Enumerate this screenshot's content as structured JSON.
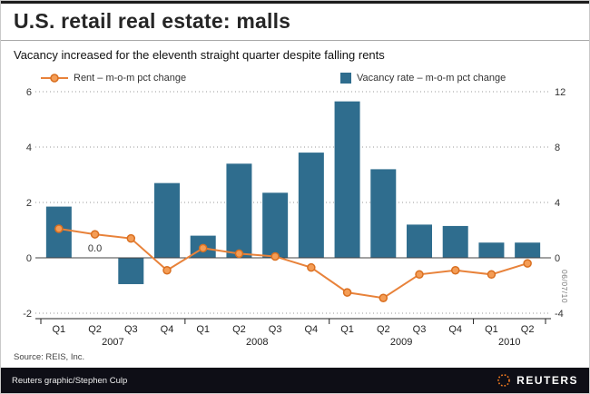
{
  "header": {
    "title": "U.S. retail real estate: malls",
    "subtitle": "Vacancy increased for the eleventh straight quarter despite falling rents"
  },
  "legend": {
    "rent_label": "Rent – m-o-m pct change",
    "vacancy_label": "Vacancy rate – m-o-m pct change"
  },
  "side_date": "06/07/10",
  "footer": {
    "source": "Source: REIS, Inc.",
    "credit": "Reuters graphic/Stephen Culp",
    "logo_text": "REUTERS"
  },
  "colors": {
    "bar": "#2f6d8e",
    "line": "#e8823a",
    "marker_fill": "#f49d56",
    "marker_stroke": "#d96f20",
    "logo_orange": "#f47b20",
    "grid": "#999999",
    "zero_line": "#444444",
    "axis": "#222222"
  },
  "chart_data": {
    "type": "bar",
    "subtype": "bar+line combo, dual axis",
    "categories": [
      "Q1",
      "Q2",
      "Q3",
      "Q4",
      "Q1",
      "Q2",
      "Q3",
      "Q4",
      "Q1",
      "Q2",
      "Q3",
      "Q4",
      "Q1",
      "Q2"
    ],
    "year_groups": [
      {
        "label": "2007",
        "slots": [
          0,
          3
        ]
      },
      {
        "label": "2008",
        "slots": [
          4,
          7
        ]
      },
      {
        "label": "2009",
        "slots": [
          8,
          11
        ]
      },
      {
        "label": "2010",
        "slots": [
          12,
          13
        ]
      }
    ],
    "series": [
      {
        "name": "Vacancy rate – m-o-m pct change",
        "type": "bar",
        "axis": "right",
        "values": [
          3.7,
          0.0,
          -1.9,
          5.4,
          1.6,
          6.8,
          4.7,
          7.6,
          11.3,
          6.4,
          2.4,
          2.3,
          1.1,
          1.1
        ]
      },
      {
        "name": "Rent – m-o-m pct change",
        "type": "line",
        "axis": "left",
        "values": [
          1.05,
          0.85,
          0.7,
          -0.45,
          0.35,
          0.15,
          0.05,
          -0.35,
          -1.25,
          -1.45,
          -0.6,
          -0.45,
          -0.6,
          -0.2
        ]
      }
    ],
    "left_axis": {
      "ticks": [
        6,
        4,
        2,
        0,
        -2
      ],
      "range": [
        -2,
        6
      ]
    },
    "right_axis": {
      "ticks": [
        12,
        8,
        4,
        0,
        -4
      ],
      "range": [
        -4,
        12
      ]
    },
    "annotation": {
      "text": "0.0",
      "slot": 1
    },
    "grid": "dotted horizontal",
    "legend_position": "top"
  }
}
